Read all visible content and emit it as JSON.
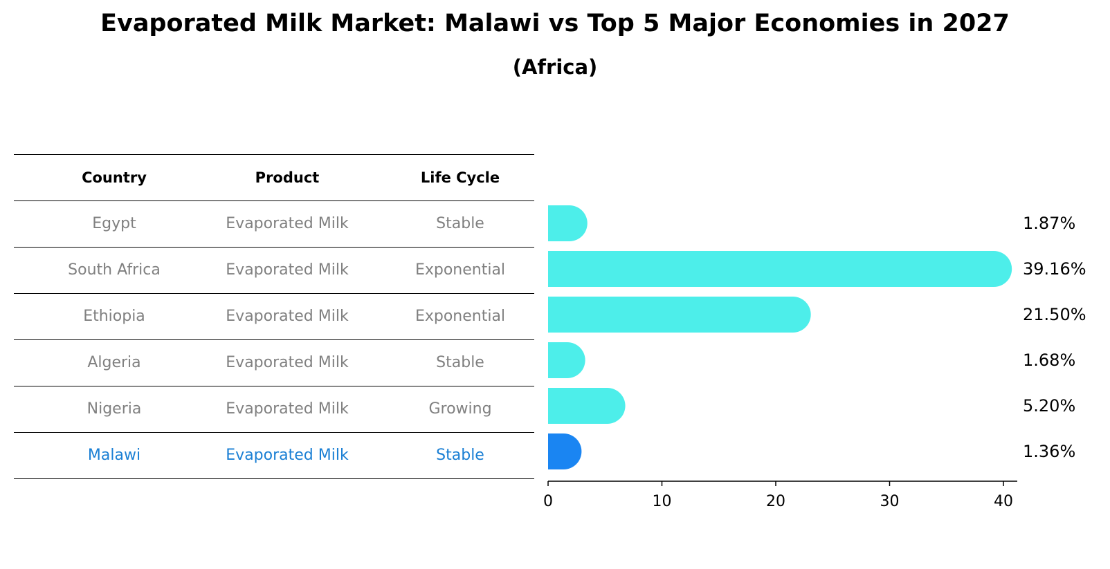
{
  "title": "Evaporated Milk Market: Malawi vs Top 5 Major Economies in 2027",
  "subtitle": "(Africa)",
  "table": {
    "headers": [
      "Country",
      "Product",
      "Life Cycle"
    ],
    "rows": [
      [
        "Egypt",
        "Evaporated Milk",
        "Stable"
      ],
      [
        "South Africa",
        "Evaporated Milk",
        "Exponential"
      ],
      [
        "Ethiopia",
        "Evaporated Milk",
        "Exponential"
      ],
      [
        "Algeria",
        "Evaporated Milk",
        "Stable"
      ],
      [
        "Nigeria",
        "Evaporated Milk",
        "Growing"
      ],
      [
        "Malawi",
        "Evaporated Milk",
        "Stable"
      ]
    ]
  },
  "chart_data": {
    "type": "bar",
    "orientation": "horizontal",
    "categories": [
      "Egypt",
      "South Africa",
      "Ethiopia",
      "Algeria",
      "Nigeria",
      "Malawi"
    ],
    "values": [
      1.87,
      39.16,
      21.5,
      1.68,
      5.2,
      1.36
    ],
    "value_labels": [
      "1.87%",
      "39.16%",
      "21.50%",
      "1.68%",
      "5.20%",
      "1.36%"
    ],
    "xlim": [
      0,
      41
    ],
    "xticks": [
      0,
      10,
      20,
      30,
      40
    ],
    "grid": false,
    "colors": {
      "default": "#4DEEEA",
      "highlight": "#1A85F2",
      "highlight_text": "#1A7FD4",
      "muted_text": "#808080"
    },
    "highlight_index": 5
  }
}
